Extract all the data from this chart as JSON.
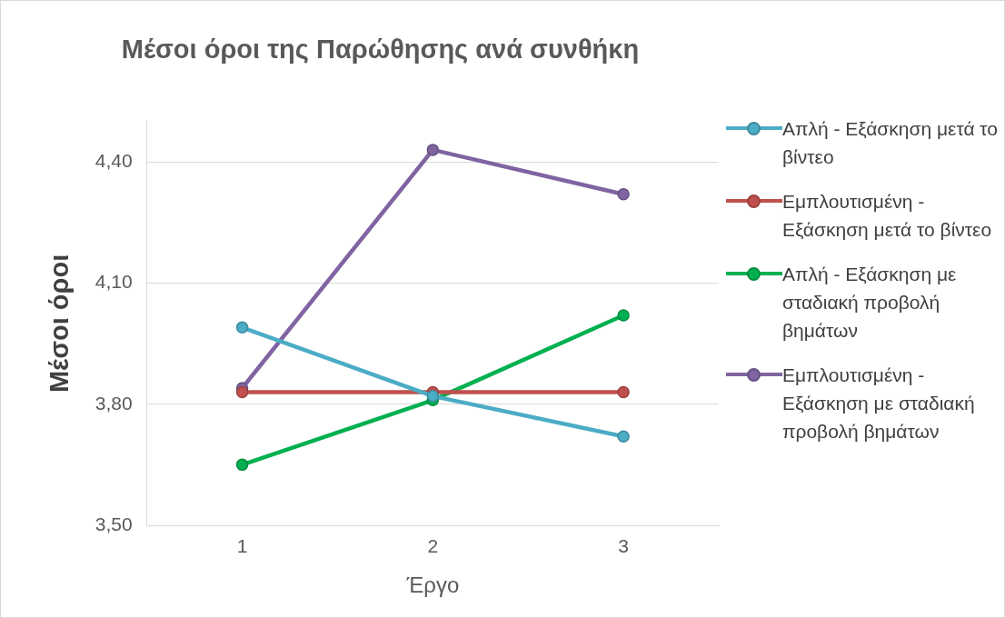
{
  "chart_data": {
    "type": "line",
    "title": "Μέσοι όροι της Παρώθησης ανά συνθήκη",
    "xlabel": "Έργο",
    "ylabel": "Μέσοι όροι",
    "categories": [
      "1",
      "2",
      "3"
    ],
    "series": [
      {
        "name": "Απλή - Εξάσκηση μετά το βίντεο",
        "color": "#4bacc6",
        "values": [
          3.99,
          3.82,
          3.72
        ]
      },
      {
        "name": "Εμπλουτισμένη - Εξάσκηση μετά το βίντεο",
        "color": "#c0504d",
        "values": [
          3.83,
          3.83,
          3.83
        ]
      },
      {
        "name": "Απλή - Εξάσκηση με σταδιακή προβολή βημάτων",
        "color": "#00b050",
        "values": [
          3.65,
          3.81,
          4.02
        ]
      },
      {
        "name": "Εμπλουτισμένη - Εξάσκηση με σταδιακή προβολή βημάτων",
        "color": "#8064a2",
        "values": [
          3.84,
          4.43,
          4.32
        ]
      }
    ],
    "ylim": [
      3.5,
      4.5
    ],
    "yticks": [
      {
        "value": 3.5,
        "label": "3,50"
      },
      {
        "value": 3.8,
        "label": "3,80"
      },
      {
        "value": 4.1,
        "label": "4,10"
      },
      {
        "value": 4.4,
        "label": "4,40"
      }
    ],
    "grid": "y",
    "legend": "right",
    "marker": "circle",
    "line_style": "solid"
  }
}
